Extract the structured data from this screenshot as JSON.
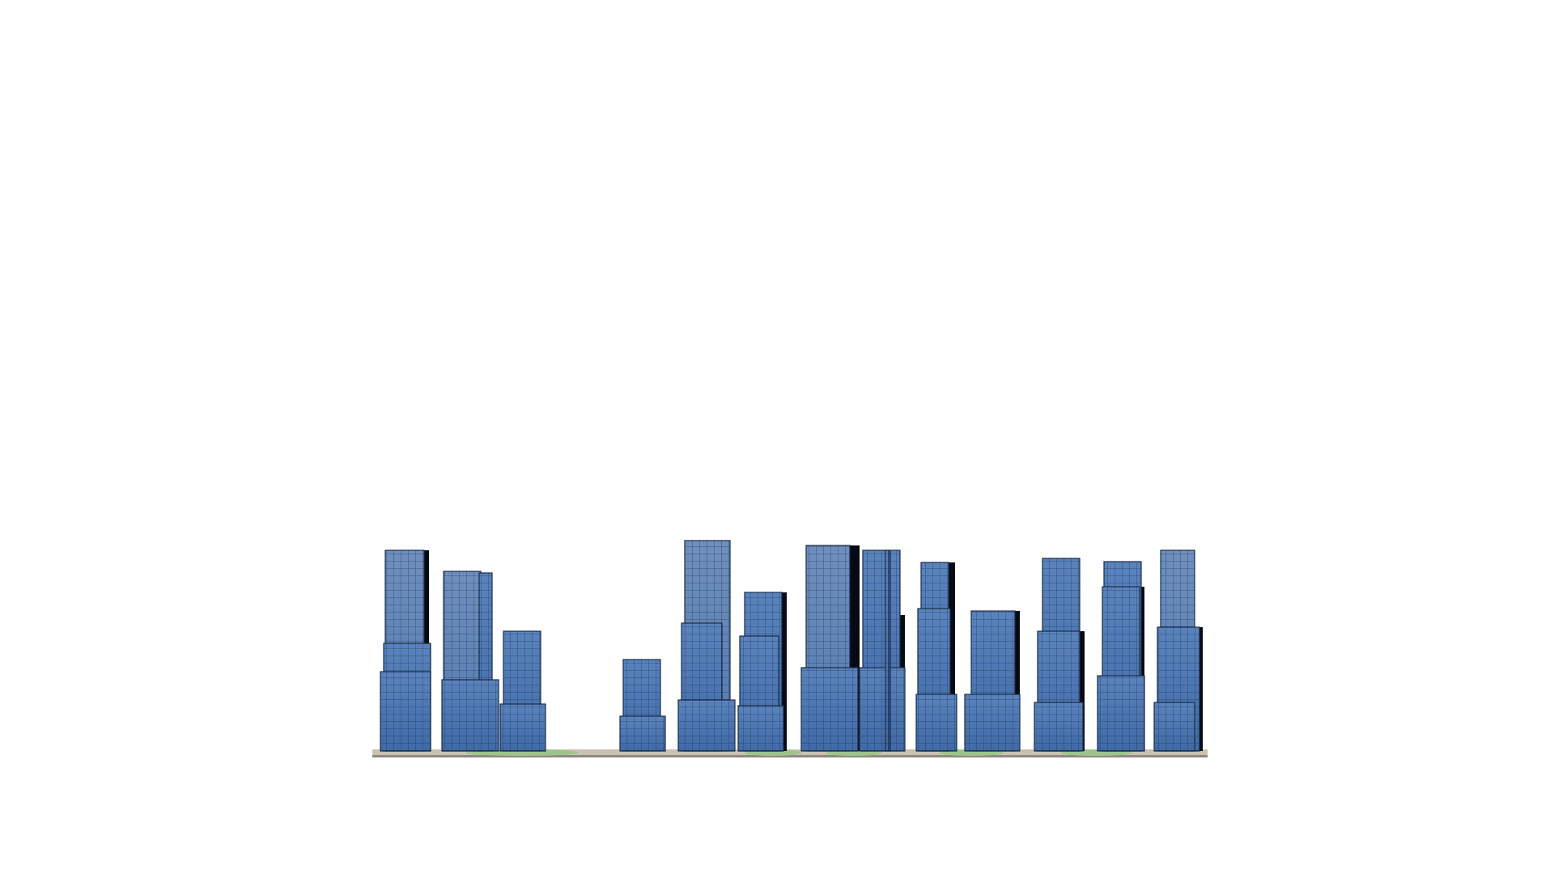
{
  "scene": {
    "subject": "city-skyline-massing-model",
    "background_color": "#ffffff",
    "glass_color": "#4a76b5",
    "glass_light_color": "#6b8fc4",
    "glass_dark_color": "#1f3557",
    "shadow_color": "#050a14",
    "mullion_color": "#1a2c47",
    "ground_color": "#c9c2b3",
    "lawn_color": "#9cc48a",
    "tower_count": 14
  }
}
